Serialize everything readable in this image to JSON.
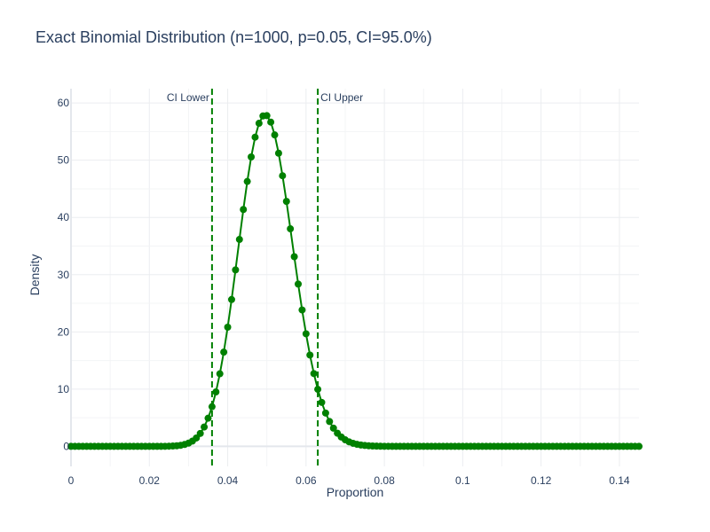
{
  "chart_data": {
    "type": "line",
    "title": "Exact Binomial Distribution (n=1000, p=0.05, CI=95.0%)",
    "xlabel": "Proportion",
    "ylabel": "Density",
    "xlim": [
      0,
      0.145
    ],
    "ylim": [
      -3.5,
      62.5
    ],
    "x_ticks": [
      0,
      0.02,
      0.04,
      0.06,
      0.08,
      0.1,
      0.12,
      0.14
    ],
    "x_tick_labels": [
      "0",
      "0.02",
      "0.04",
      "0.06",
      "0.08",
      "0.1",
      "0.12",
      "0.14"
    ],
    "y_ticks": [
      0,
      10,
      20,
      30,
      40,
      50,
      60
    ],
    "y_tick_labels": [
      "0",
      "10",
      "20",
      "30",
      "40",
      "50",
      "60"
    ],
    "grid": true,
    "legend": "none",
    "series": [
      {
        "color": "#008000",
        "marker": "circle",
        "n": 1000,
        "p": 0.05,
        "scale": 1000,
        "k_range": [
          0,
          145
        ]
      }
    ],
    "annotations": [
      {
        "label": "CI Lower",
        "x": 0.036,
        "style": "dashed",
        "color": "#008000",
        "label_side": "left"
      },
      {
        "label": "CI Upper",
        "x": 0.063,
        "style": "dashed",
        "color": "#008000",
        "label_side": "right"
      }
    ]
  }
}
